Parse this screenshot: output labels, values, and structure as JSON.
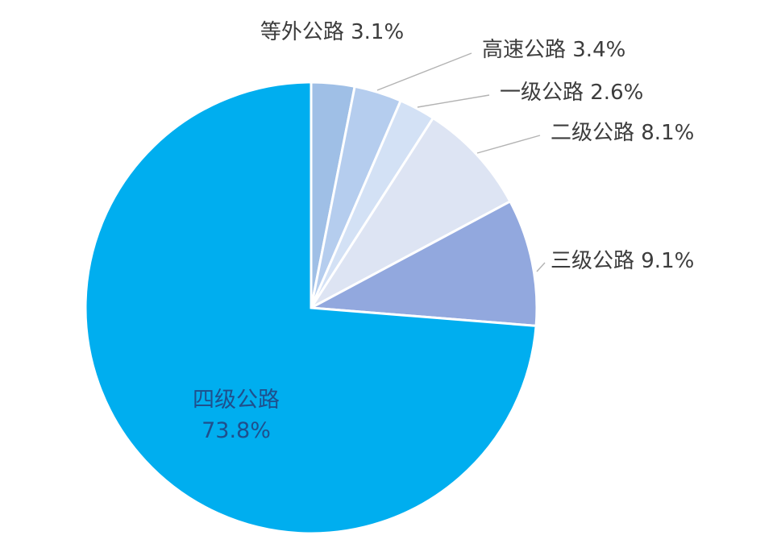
{
  "chart_data": {
    "type": "pie",
    "title": "",
    "legend": "none",
    "slices": [
      {
        "label": "等外公路",
        "value": 3.1,
        "value_label": "3.1%",
        "color": "#9fbfe6"
      },
      {
        "label": "高速公路",
        "value": 3.4,
        "value_label": "3.4%",
        "color": "#b5cdee"
      },
      {
        "label": "一级公路",
        "value": 2.6,
        "value_label": "2.6%",
        "color": "#d3e1f5"
      },
      {
        "label": "二级公路",
        "value": 8.1,
        "value_label": "8.1%",
        "color": "#dde4f3"
      },
      {
        "label": "三级公路",
        "value": 9.1,
        "value_label": "9.1%",
        "color": "#92a8de"
      },
      {
        "label": "四级公路",
        "value": 73.8,
        "value_label": "73.8%",
        "color": "#00aeef"
      }
    ]
  }
}
